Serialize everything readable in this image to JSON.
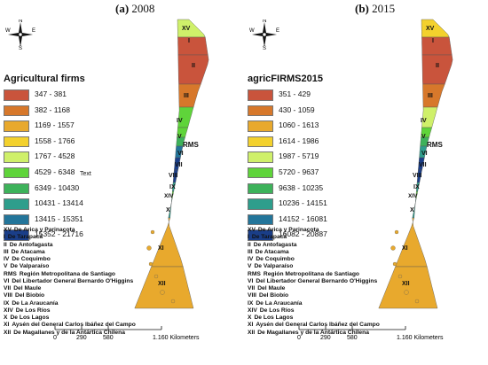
{
  "panels": [
    {
      "id": "a",
      "title_letter": "(a)",
      "title_year": "2008",
      "legend_title": "Agricultural firms",
      "legend": [
        {
          "range": "347 - 381",
          "color": "#C9543C"
        },
        {
          "range": "382 - 1168",
          "color": "#D7782B"
        },
        {
          "range": "1169 - 1557",
          "color": "#E8A92D"
        },
        {
          "range": "1558 - 1766",
          "color": "#F3D12D"
        },
        {
          "range": "1767 - 4528",
          "color": "#CFF06A"
        },
        {
          "range": "4529 - 6348",
          "color": "#5FD43A"
        },
        {
          "range": "6349 - 10430",
          "color": "#3DB25A"
        },
        {
          "range": "10431 - 13414",
          "color": "#2E9E8C"
        },
        {
          "range": "13415 - 15351",
          "color": "#23759A"
        },
        {
          "range": "15352 - 21716",
          "color": "#1A3E88"
        }
      ],
      "legend_note": "Text",
      "region_colors": {
        "XV": "#CFF06A",
        "I": "#C9543C",
        "II": "#C9543C",
        "III": "#D7782B",
        "IV": "#5FD43A",
        "V": "#5FD43A",
        "RMS": "#3DB25A",
        "VI": "#23759A",
        "VII": "#1A3E88",
        "VIII": "#1A3E88",
        "IX": "#2E9E8C",
        "XIV": "#5FD43A",
        "X": "#2E9E8C",
        "XI": "#E8A92D",
        "XII": "#E8A92D"
      }
    },
    {
      "id": "b",
      "title_letter": "(b)",
      "title_year": "2015",
      "legend_title": "agricFIRMS2015",
      "legend": [
        {
          "range": "351 - 429",
          "color": "#C9543C"
        },
        {
          "range": "430 - 1059",
          "color": "#D7782B"
        },
        {
          "range": "1060 - 1613",
          "color": "#E8A92D"
        },
        {
          "range": "1614 - 1986",
          "color": "#F3D12D"
        },
        {
          "range": "1987 - 5719",
          "color": "#CFF06A"
        },
        {
          "range": "5720 - 9637",
          "color": "#5FD43A"
        },
        {
          "range": "9638 - 10235",
          "color": "#3DB25A"
        },
        {
          "range": "10236 - 14151",
          "color": "#2E9E8C"
        },
        {
          "range": "14152 - 16081",
          "color": "#23759A"
        },
        {
          "range": "16082 - 20887",
          "color": "#1A3E88"
        }
      ],
      "legend_note": "",
      "region_colors": {
        "XV": "#F3D12D",
        "I": "#C9543C",
        "II": "#C9543C",
        "III": "#D7782B",
        "IV": "#CFF06A",
        "V": "#5FD43A",
        "RMS": "#3DB25A",
        "VI": "#2E9E8C",
        "VII": "#1A3E88",
        "VIII": "#1A3E88",
        "IX": "#2E9E8C",
        "XIV": "#5FD43A",
        "X": "#2E9E8C",
        "XI": "#E8A92D",
        "XII": "#E8A92D"
      }
    }
  ],
  "compass": {
    "n": "N",
    "s": "S",
    "e": "E",
    "w": "W"
  },
  "region_names": [
    {
      "code": "XV",
      "name": "De Arica y Parinacota"
    },
    {
      "code": "I",
      "name": "De Tarapacá"
    },
    {
      "code": "II",
      "name": "De Antofagasta"
    },
    {
      "code": "III",
      "name": "De Atacama"
    },
    {
      "code": "IV",
      "name": "De Coquimbo"
    },
    {
      "code": "V",
      "name": "De Valparaíso"
    },
    {
      "code": "RMS",
      "name": "Región Metropolitana de Santiago"
    },
    {
      "code": "VI",
      "name": "Del Libertador General Bernardo O'Higgins"
    },
    {
      "code": "VII",
      "name": "Del Maule"
    },
    {
      "code": "VIII",
      "name": "Del Biobío"
    },
    {
      "code": "IX",
      "name": "De La Araucanía"
    },
    {
      "code": "XIV",
      "name": "De Los Ríos"
    },
    {
      "code": "X",
      "name": "De Los Lagos"
    },
    {
      "code": "XI",
      "name": "Aysén del General Carlos Ibáñez del Campo"
    },
    {
      "code": "XII",
      "name": "De Magallanes y de la Antártica Chilena"
    }
  ],
  "scale_bar": {
    "ticks": [
      "0",
      "290",
      "580"
    ],
    "end_label": "1.160 Kilometers"
  }
}
